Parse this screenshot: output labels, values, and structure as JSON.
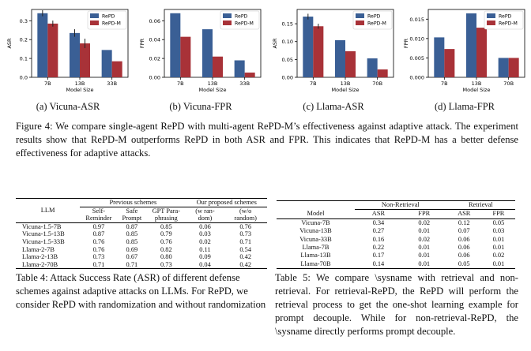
{
  "colors": {
    "repd": "#3a5f95",
    "repd_m": "#a83238"
  },
  "chart_data": [
    {
      "type": "bar",
      "subcaption": "(a) Vicuna-ASR",
      "ylabel": "ASR",
      "xlabel": "Model Size",
      "categories": [
        "7B",
        "13B",
        "33B"
      ],
      "ylim": [
        0,
        0.36
      ],
      "yticks": [
        "0.0",
        "0.1",
        "0.2",
        "0.3"
      ],
      "ytick_values": [
        0,
        0.1,
        0.2,
        0.3
      ],
      "legend": "top-right",
      "series": [
        {
          "name": "RePD",
          "values": [
            0.34,
            0.235,
            0.145
          ],
          "errors": [
            0.016,
            0.02,
            0.0
          ]
        },
        {
          "name": "RePD-M",
          "values": [
            0.285,
            0.18,
            0.085
          ],
          "errors": [
            0.016,
            0.025,
            0.0
          ]
        }
      ]
    },
    {
      "type": "bar",
      "subcaption": "(b) Vicuna-FPR",
      "ylabel": "FPR",
      "xlabel": "Model Size",
      "categories": [
        "7B",
        "13B",
        "33B"
      ],
      "ylim": [
        0,
        0.072
      ],
      "yticks": [
        "0.00",
        "0.02",
        "0.04",
        "0.06"
      ],
      "ytick_values": [
        0,
        0.02,
        0.04,
        0.06
      ],
      "legend": "top-right",
      "series": [
        {
          "name": "RePD",
          "values": [
            0.068,
            0.051,
            0.018
          ],
          "errors": [
            0,
            0,
            0
          ]
        },
        {
          "name": "RePD-M",
          "values": [
            0.043,
            0.022,
            0.005
          ],
          "errors": [
            0,
            0,
            0
          ]
        }
      ]
    },
    {
      "type": "bar",
      "subcaption": "(c) Llama-ASR",
      "ylabel": "ASR",
      "xlabel": "Model Size",
      "categories": [
        "7B",
        "13B",
        "70B"
      ],
      "ylim": [
        0,
        0.19
      ],
      "yticks": [
        "0.00",
        "0.05",
        "0.10",
        "0.15"
      ],
      "ytick_values": [
        0,
        0.05,
        0.1,
        0.15
      ],
      "legend": "top-right",
      "series": [
        {
          "name": "RePD",
          "values": [
            0.17,
            0.104,
            0.053
          ],
          "errors": [
            0.008,
            0,
            0
          ]
        },
        {
          "name": "RePD-M",
          "values": [
            0.143,
            0.073,
            0.022
          ],
          "errors": [
            0.007,
            0,
            0
          ]
        }
      ]
    },
    {
      "type": "bar",
      "subcaption": "(d) Llama-FPR",
      "ylabel": "FPR",
      "xlabel": "Model Size",
      "categories": [
        "7B",
        "13B",
        "70B"
      ],
      "ylim": [
        0,
        0.0175
      ],
      "yticks": [
        "0.000",
        "0.005",
        "0.010",
        "0.015"
      ],
      "ytick_values": [
        0,
        0.005,
        0.01,
        0.015
      ],
      "legend": "top-right",
      "series": [
        {
          "name": "RePD",
          "values": [
            0.0103,
            0.0165,
            0.005
          ],
          "errors": [
            0,
            0,
            0
          ]
        },
        {
          "name": "RePD-M",
          "values": [
            0.0073,
            0.0128,
            0.005
          ],
          "errors": [
            0,
            0,
            0
          ]
        }
      ]
    }
  ],
  "figure_caption": "Figure 4: We compare single-agent RePD with multi-agent RePD-M’s effectiveness against adaptive attack. The experiment results show that RePD-M outperforms RePD in both ASR and FPR. This indicates that RePD-M has a better defense effectiveness for adaptive attacks.",
  "table4": {
    "llm_header": "LLM",
    "prev_header": "Previous schemes",
    "ours_header": "Our proposed schemes",
    "sub_headers_1": [
      "Self-",
      "Safe",
      "GPT Para-",
      "(w ran-",
      "(w/o"
    ],
    "sub_headers_2": [
      "Reminder",
      "Prompt",
      "phrasing",
      "dom)",
      "random)"
    ],
    "rows": [
      {
        "llm": "Vicuna-1.5-7B",
        "vals": [
          "0.97",
          "0.87",
          "0.85",
          "0.06",
          "0.76"
        ]
      },
      {
        "llm": "Vicuna-1.5-13B",
        "vals": [
          "0.87",
          "0.85",
          "0.79",
          "0.03",
          "0.73"
        ]
      },
      {
        "llm": "Vicuna-1.5-33B",
        "vals": [
          "0.76",
          "0.85",
          "0.76",
          "0.02",
          "0.71"
        ]
      },
      {
        "llm": "Llama-2-7B",
        "vals": [
          "0.76",
          "0.69",
          "0.82",
          "0.11",
          "0.54"
        ]
      },
      {
        "llm": "Llama-2-13B",
        "vals": [
          "0.73",
          "0.67",
          "0.80",
          "0.09",
          "0.42"
        ]
      },
      {
        "llm": "Llama-2-70B",
        "vals": [
          "0.71",
          "0.71",
          "0.73",
          "0.04",
          "0.42"
        ]
      }
    ],
    "caption": "Table 4: Attack Success Rate (ASR) of different defense schemes against adaptive attacks on LLMs. For RePD, we consider RePD with randomization and without randomization"
  },
  "table5": {
    "group_headers": [
      "Non-Retrieval",
      "Retrieval"
    ],
    "col_headers": [
      "Model",
      "ASR",
      "FPR",
      "ASR",
      "FPR"
    ],
    "rows": [
      {
        "model": "Vicuna-7B",
        "vals": [
          "0.34",
          "0.02",
          "0.12",
          "0.05"
        ]
      },
      {
        "model": "Vicuna-13B",
        "vals": [
          "0.27",
          "0.01",
          "0.07",
          "0.03"
        ]
      },
      {
        "model": "Vicuna-33B",
        "vals": [
          "0.16",
          "0.02",
          "0.06",
          "0.01"
        ]
      },
      {
        "model": "Llama-7B",
        "vals": [
          "0.22",
          "0.01",
          "0.06",
          "0.01"
        ]
      },
      {
        "model": "Llama-13B",
        "vals": [
          "0.17",
          "0.01",
          "0.06",
          "0.02"
        ]
      },
      {
        "model": "Llama-70B",
        "vals": [
          "0.14",
          "0.01",
          "0.05",
          "0.01"
        ]
      }
    ],
    "caption": "Table 5: We compare \\sysname with retrieval and non-retrieval. For retrieval-RePD, the RePD will perform the retrieval process to get the one-shot learning example for prompt decouple. While for non-retrieval-RePD, the \\sysname directly performs prompt decouple."
  }
}
